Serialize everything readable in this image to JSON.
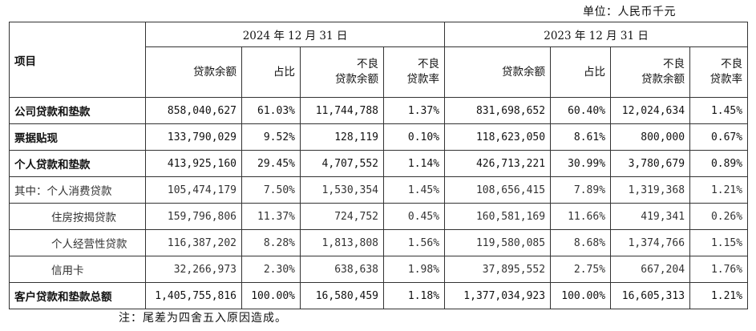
{
  "unit_label": "单位：人民币千元",
  "header": {
    "item": "项目",
    "period_2024": "2024 年 12 月 31 日",
    "period_2023": "2023 年 12 月 31 日",
    "col_balance": "贷款余额",
    "col_share": "占比",
    "col_npl_balance_l1": "不良",
    "col_npl_balance_l2": "贷款余额",
    "col_npl_rate_l1": "不良",
    "col_npl_rate_l2": "贷款率"
  },
  "rows": [
    {
      "label": "公司贷款和垫款",
      "b24": "858,040,627",
      "s24": "61.03%",
      "n24": "11,744,788",
      "r24": "1.37%",
      "b23": "831,698,652",
      "s23": "60.40%",
      "n23": "12,024,634",
      "r23": "1.45%"
    },
    {
      "label": "票据贴现",
      "b24": "133,790,029",
      "s24": "9.52%",
      "n24": "128,119",
      "r24": "0.10%",
      "b23": "118,623,050",
      "s23": "8.61%",
      "n23": "800,000",
      "r23": "0.67%"
    },
    {
      "label": "个人贷款和垫款",
      "b24": "413,925,160",
      "s24": "29.45%",
      "n24": "4,707,552",
      "r24": "1.14%",
      "b23": "426,713,221",
      "s23": "30.99%",
      "n23": "3,780,679",
      "r23": "0.89%"
    },
    {
      "label": "其中：个人消费贷款",
      "b24": "105,474,179",
      "s24": "7.50%",
      "n24": "1,530,354",
      "r24": "1.45%",
      "b23": "108,656,415",
      "s23": "7.89%",
      "n23": "1,319,368",
      "r23": "1.21%"
    },
    {
      "label": "住房按揭贷款",
      "b24": "159,796,806",
      "s24": "11.37%",
      "n24": "724,752",
      "r24": "0.45%",
      "b23": "160,581,169",
      "s23": "11.66%",
      "n23": "419,341",
      "r23": "0.26%"
    },
    {
      "label": "个人经营性贷款",
      "b24": "116,387,202",
      "s24": "8.28%",
      "n24": "1,813,808",
      "r24": "1.56%",
      "b23": "119,580,085",
      "s23": "8.68%",
      "n23": "1,374,766",
      "r23": "1.15%"
    },
    {
      "label": "信用卡",
      "b24": "32,266,973",
      "s24": "2.30%",
      "n24": "638,638",
      "r24": "1.98%",
      "b23": "37,895,552",
      "s23": "2.75%",
      "n23": "667,204",
      "r23": "1.76%"
    },
    {
      "label": "客户贷款和垫款总额",
      "b24": "1,405,755,816",
      "s24": "100.00%",
      "n24": "16,580,459",
      "r24": "1.18%",
      "b23": "1,377,034,923",
      "s23": "100.00%",
      "n23": "16,605,313",
      "r23": "1.21%"
    }
  ],
  "note": "注：尾差为四舍五入原因造成。"
}
